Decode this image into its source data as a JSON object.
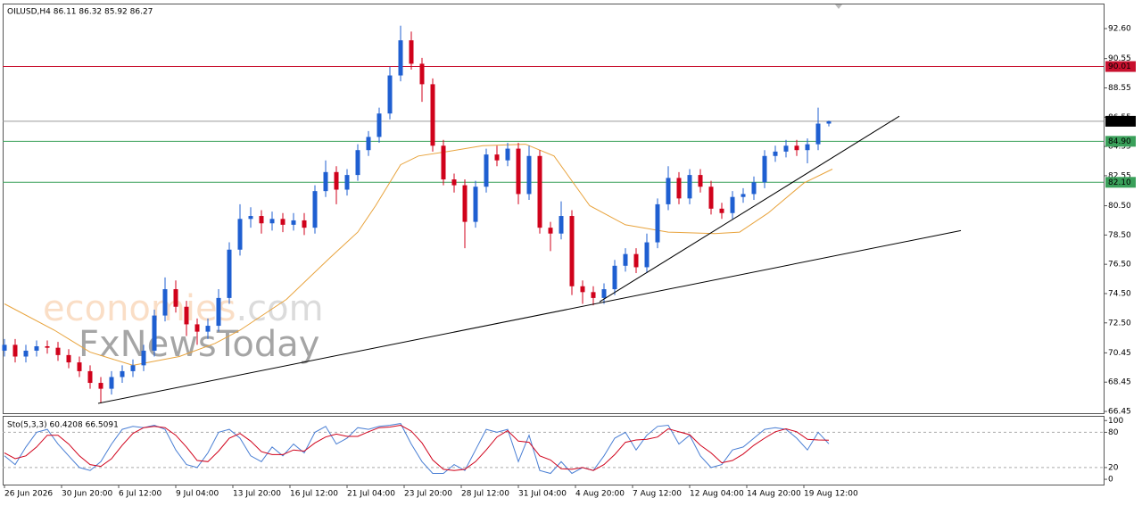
{
  "chart_data": [
    {
      "type": "candlestick",
      "header": "OILUSD,H4  86.11 86.32 85.92 86.27",
      "x": [
        0,
        3,
        6,
        9,
        12,
        15,
        18,
        21,
        24,
        27,
        30,
        33,
        36,
        39,
        42,
        45,
        48,
        51,
        54,
        57,
        60,
        63,
        66,
        69,
        72,
        75,
        78,
        81,
        84,
        87,
        90,
        93,
        96,
        99,
        102,
        105,
        108,
        111,
        114,
        117,
        120,
        123,
        126,
        129,
        132,
        135,
        138,
        141,
        144,
        147,
        150,
        153,
        156,
        159,
        162,
        165,
        168,
        171,
        174,
        177,
        180,
        183,
        186,
        189,
        192,
        195,
        198,
        201,
        204,
        207,
        210,
        213,
        216,
        219,
        222,
        225,
        228,
        231
      ],
      "open": [
        70.6,
        71.0,
        70.2,
        70.6,
        70.9,
        70.8,
        70.3,
        69.8,
        69.2,
        68.4,
        68.0,
        68.8,
        69.2,
        69.6,
        70.6,
        73.0,
        74.8,
        73.6,
        72.4,
        71.9,
        72.3,
        74.2,
        77.5,
        79.6,
        79.8,
        79.3,
        79.6,
        79.2,
        79.5,
        79.0,
        81.5,
        82.8,
        81.6,
        82.6,
        84.3,
        85.2,
        86.8,
        89.4,
        91.8,
        90.2,
        88.8,
        84.6,
        82.3,
        81.9,
        79.4,
        81.8,
        84.0,
        83.6,
        84.4,
        81.3,
        83.9,
        79.0,
        78.6,
        79.8,
        75.0,
        74.6,
        74.2,
        74.8,
        76.4,
        77.2,
        76.3,
        78.0,
        80.6,
        82.4,
        81.0,
        82.6,
        81.8,
        80.3,
        80.0,
        81.1,
        81.3,
        82.1,
        83.9,
        84.2,
        84.6,
        84.3,
        84.7,
        86.11
      ],
      "high": [
        71.4,
        71.4,
        71.0,
        71.3,
        71.3,
        71.2,
        70.7,
        70.2,
        69.6,
        68.8,
        69.2,
        69.6,
        70.0,
        71.0,
        73.4,
        75.6,
        75.4,
        74.0,
        72.8,
        72.8,
        74.8,
        78.0,
        80.6,
        80.4,
        80.2,
        80.1,
        80.0,
        80.0,
        80.0,
        81.9,
        83.6,
        83.2,
        83.0,
        84.7,
        85.6,
        87.2,
        90.0,
        92.8,
        92.4,
        90.6,
        89.2,
        85.0,
        82.7,
        82.3,
        82.2,
        84.4,
        84.6,
        84.8,
        84.8,
        84.6,
        84.3,
        79.4,
        80.8,
        80.2,
        75.4,
        75.0,
        75.2,
        76.8,
        77.6,
        77.6,
        78.6,
        81.0,
        83.2,
        82.8,
        83.0,
        83.0,
        82.2,
        80.7,
        81.5,
        81.7,
        82.5,
        84.3,
        84.6,
        85.0,
        85.0,
        85.1,
        87.2,
        86.32
      ],
      "low": [
        70.2,
        69.8,
        69.8,
        70.2,
        70.4,
        69.9,
        69.4,
        68.8,
        68.0,
        67.0,
        67.6,
        68.4,
        68.8,
        69.2,
        70.2,
        72.6,
        73.2,
        71.6,
        71.0,
        71.4,
        71.9,
        73.8,
        77.1,
        79.0,
        78.6,
        78.8,
        78.7,
        78.8,
        78.5,
        78.6,
        81.1,
        80.6,
        81.2,
        82.2,
        83.9,
        84.8,
        86.4,
        89.0,
        89.8,
        87.6,
        84.2,
        81.9,
        81.4,
        77.6,
        79.0,
        81.4,
        83.2,
        83.2,
        80.6,
        80.9,
        78.6,
        77.4,
        78.2,
        74.4,
        73.8,
        73.7,
        73.8,
        74.4,
        76.0,
        75.9,
        75.9,
        77.6,
        80.2,
        80.6,
        80.6,
        81.4,
        79.9,
        79.6,
        79.6,
        80.7,
        80.9,
        81.7,
        83.5,
        83.8,
        83.9,
        83.4,
        84.3,
        85.92
      ],
      "close": [
        71.0,
        70.2,
        70.6,
        70.9,
        70.8,
        70.3,
        69.8,
        69.2,
        68.4,
        68.0,
        68.8,
        69.2,
        69.6,
        70.6,
        73.0,
        74.8,
        73.6,
        72.4,
        71.9,
        72.3,
        74.2,
        77.5,
        79.6,
        79.8,
        79.3,
        79.6,
        79.2,
        79.5,
        79.0,
        81.5,
        82.8,
        81.6,
        82.6,
        84.3,
        85.2,
        86.8,
        89.4,
        91.8,
        90.2,
        88.8,
        84.6,
        82.3,
        81.9,
        79.4,
        81.8,
        84.0,
        83.6,
        84.4,
        81.3,
        83.9,
        79.0,
        78.6,
        79.8,
        75.0,
        74.6,
        74.2,
        74.8,
        76.4,
        77.2,
        76.3,
        78.0,
        80.6,
        82.4,
        81.0,
        82.6,
        81.8,
        80.3,
        80.0,
        81.1,
        81.3,
        82.1,
        83.9,
        84.2,
        84.6,
        84.3,
        84.7,
        86.11,
        86.27
      ],
      "up_color": "#1f5fd1",
      "down_color": "#d0021b",
      "xlim": [
        -0.5,
        308
      ],
      "xticks": [
        {
          "value": 0,
          "label": "26 Jun 2026"
        },
        {
          "value": 16,
          "label": "30 Jun 20:00"
        },
        {
          "value": 32,
          "label": "6 Jul 12:00"
        },
        {
          "value": 48,
          "label": "9 Jul 04:00"
        },
        {
          "value": 64,
          "label": "13 Jul 20:00"
        },
        {
          "value": 80,
          "label": "16 Jul 12:00"
        },
        {
          "value": 96,
          "label": "21 Jul 04:00"
        },
        {
          "value": 112,
          "label": "23 Jul 20:00"
        },
        {
          "value": 128,
          "label": "28 Jul 12:00"
        },
        {
          "value": 144,
          "label": "31 Jul 04:00"
        },
        {
          "value": 160,
          "label": "4 Aug 20:00"
        },
        {
          "value": 176,
          "label": "7 Aug 12:00"
        },
        {
          "value": 192,
          "label": "12 Aug 04:00"
        },
        {
          "value": 208,
          "label": "14 Aug 20:00"
        },
        {
          "value": 224,
          "label": "19 Aug 12:00"
        }
      ],
      "ylim": [
        66.33,
        94.31
      ],
      "yticks": [
        {
          "value": 92.6,
          "label": "92.60"
        },
        90.55,
        88.55,
        86.55,
        84.55,
        82.55,
        {
          "value": 80.5,
          "label": "80.50"
        },
        {
          "value": 78.5,
          "label": "78.50"
        },
        {
          "value": 76.5,
          "label": "76.50"
        },
        {
          "value": 74.5,
          "label": "74.50"
        },
        {
          "value": 72.5,
          "label": "72.50"
        },
        70.45,
        68.45,
        66.45
      ],
      "moving_average": {
        "color": "#e8a33c",
        "x": [
          0,
          14,
          24,
          36,
          49,
          59,
          66,
          79,
          91,
          99,
          104,
          111,
          116,
          124,
          134,
          146,
          154,
          164,
          174,
          186,
          199,
          206,
          214,
          224,
          232
        ],
        "values": [
          73.8,
          72,
          70.5,
          69.6,
          70.2,
          71.1,
          72,
          74.1,
          76.9,
          78.7,
          80.5,
          83.3,
          83.9,
          84.2,
          84.6,
          84.7,
          83.9,
          80.5,
          79.2,
          78.7,
          78.6,
          78.7,
          80,
          82.05,
          83.0
        ]
      },
      "trendlines": [
        {
          "color": "#000000",
          "x": [
            26.25,
            268
          ],
          "values": [
            67.0,
            78.8
          ]
        },
        {
          "color": "#000000",
          "x": [
            166.75,
            250.75
          ],
          "values": [
            73.94,
            86.62
          ]
        }
      ],
      "levels": [
        {
          "value": 90.01,
          "color": "#c8102e"
        },
        {
          "value": 86.27,
          "color": "#9a9a9a",
          "box": "#000000"
        },
        {
          "value": 84.9,
          "label": "84.90",
          "color": "#3aa05a"
        },
        {
          "value": 82.1,
          "label": "82.10",
          "color": "#3aa05a"
        }
      ],
      "watermark": [
        "economies",
        ".com",
        "FxNewsToday"
      ]
    },
    {
      "type": "line",
      "title": "Sto(5,3,3) 60.4208 66.5091",
      "x": [
        0,
        3,
        6,
        9,
        12,
        15,
        18,
        21,
        24,
        27,
        30,
        33,
        36,
        39,
        42,
        45,
        48,
        51,
        54,
        57,
        60,
        63,
        66,
        69,
        72,
        75,
        78,
        81,
        84,
        87,
        90,
        93,
        96,
        99,
        102,
        105,
        108,
        111,
        114,
        117,
        120,
        123,
        126,
        129,
        132,
        135,
        138,
        141,
        144,
        147,
        150,
        153,
        156,
        159,
        162,
        165,
        168,
        171,
        174,
        177,
        180,
        183,
        186,
        189,
        192,
        195,
        198,
        201,
        204,
        207,
        210,
        213,
        216,
        219,
        222,
        225,
        228,
        231
      ],
      "series": [
        {
          "color": "#4a7fd4",
          "values": [
            40,
            25,
            55,
            80,
            85,
            60,
            40,
            20,
            15,
            30,
            60,
            85,
            90,
            88,
            92,
            85,
            50,
            25,
            20,
            45,
            80,
            85,
            70,
            40,
            30,
            55,
            40,
            60,
            45,
            80,
            90,
            60,
            70,
            88,
            85,
            90,
            92,
            95,
            60,
            30,
            10,
            10,
            25,
            15,
            50,
            85,
            80,
            85,
            30,
            75,
            15,
            10,
            30,
            10,
            20,
            15,
            40,
            70,
            80,
            50,
            75,
            90,
            92,
            60,
            75,
            40,
            20,
            25,
            50,
            55,
            70,
            85,
            88,
            85,
            70,
            50,
            80,
            60.42
          ]
        },
        {
          "color": "#d0021b",
          "values": [
            45,
            35,
            40,
            55,
            75,
            75,
            60,
            40,
            25,
            22,
            35,
            58,
            78,
            88,
            90,
            88,
            75,
            55,
            32,
            30,
            48,
            70,
            78,
            65,
            47,
            42,
            42,
            50,
            48,
            62,
            72,
            77,
            73,
            73,
            81,
            88,
            89,
            92,
            82,
            62,
            33,
            17,
            15,
            17,
            30,
            50,
            72,
            83,
            65,
            63,
            40,
            33,
            18,
            17,
            20,
            15,
            25,
            42,
            63,
            67,
            68,
            72,
            86,
            81,
            76,
            58,
            45,
            28,
            32,
            43,
            58,
            70,
            81,
            86,
            81,
            68,
            67,
            66.51
          ]
        }
      ],
      "xlim": [
        -0.5,
        308
      ],
      "ylim": [
        -9,
        108
      ],
      "yticks": [
        100,
        80,
        20,
        0
      ],
      "levels": [
        80,
        20
      ]
    }
  ]
}
